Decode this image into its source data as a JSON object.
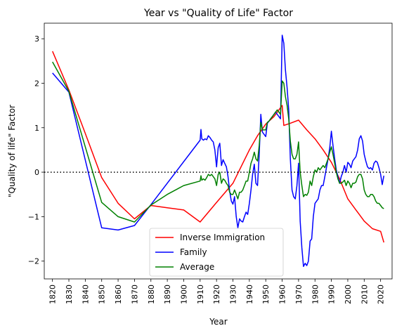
{
  "chart_data": {
    "type": "line",
    "title": "Year vs \"Quality of Life\" Factor",
    "xlabel": "Year",
    "ylabel": "\"Quality of life\" Factor",
    "xlim": [
      1815,
      2027
    ],
    "ylim": [
      -2.4,
      3.35
    ],
    "x_ticks": [
      1820,
      1830,
      1840,
      1850,
      1860,
      1870,
      1880,
      1890,
      1900,
      1910,
      1920,
      1930,
      1940,
      1950,
      1960,
      1970,
      1980,
      1990,
      2000,
      2010,
      2020
    ],
    "y_ticks": [
      -2,
      -1,
      0,
      1,
      2,
      3
    ],
    "x_tick_labels": [
      "1820",
      "1830",
      "1840",
      "1850",
      "1860",
      "1870",
      "1880",
      "1890",
      "1900",
      "1910",
      "1920",
      "1930",
      "1940",
      "1950",
      "1960",
      "1970",
      "1980",
      "1990",
      "2000",
      "2010",
      "2020"
    ],
    "y_tick_labels": [
      "−2",
      "−1",
      "0",
      "1",
      "2",
      "3"
    ],
    "reference_line": {
      "y": 0,
      "style": "dotted",
      "color": "#000000"
    },
    "legend_position": "bottom-center",
    "series": [
      {
        "name": "Inverse Immigration",
        "color": "#ff0000",
        "points": [
          [
            1820,
            2.72
          ],
          [
            1830,
            1.85
          ],
          [
            1840,
            0.87
          ],
          [
            1850,
            -0.12
          ],
          [
            1860,
            -0.7
          ],
          [
            1870,
            -1.05
          ],
          [
            1880,
            -0.75
          ],
          [
            1890,
            -0.8
          ],
          [
            1900,
            -0.85
          ],
          [
            1910,
            -1.12
          ],
          [
            1920,
            -0.68
          ],
          [
            1930,
            -0.25
          ],
          [
            1940,
            0.5
          ],
          [
            1945,
            0.82
          ],
          [
            1950,
            1.08
          ],
          [
            1955,
            1.25
          ],
          [
            1960,
            1.5
          ],
          [
            1961,
            1.05
          ],
          [
            1965,
            1.1
          ],
          [
            1970,
            1.17
          ],
          [
            1975,
            0.95
          ],
          [
            1980,
            0.75
          ],
          [
            1985,
            0.5
          ],
          [
            1990,
            0.22
          ],
          [
            1995,
            -0.15
          ],
          [
            2000,
            -0.6
          ],
          [
            2005,
            -0.85
          ],
          [
            2010,
            -1.1
          ],
          [
            2015,
            -1.27
          ],
          [
            2020,
            -1.33
          ],
          [
            2022,
            -1.58
          ]
        ]
      },
      {
        "name": "Family",
        "color": "#0000ff",
        "points": [
          [
            1820,
            2.23
          ],
          [
            1830,
            1.8
          ],
          [
            1850,
            -1.25
          ],
          [
            1860,
            -1.3
          ],
          [
            1870,
            -1.2
          ],
          [
            1880,
            -0.73
          ],
          [
            1910,
            0.72
          ],
          [
            1910.5,
            0.96
          ],
          [
            1911,
            0.75
          ],
          [
            1912,
            0.72
          ],
          [
            1913,
            0.75
          ],
          [
            1914,
            0.73
          ],
          [
            1915,
            0.82
          ],
          [
            1916,
            0.78
          ],
          [
            1917,
            0.72
          ],
          [
            1918,
            0.68
          ],
          [
            1919,
            0.5
          ],
          [
            1920,
            0.12
          ],
          [
            1921,
            0.55
          ],
          [
            1922,
            0.65
          ],
          [
            1923,
            0.15
          ],
          [
            1924,
            0.28
          ],
          [
            1925,
            0.2
          ],
          [
            1926,
            0.12
          ],
          [
            1927,
            -0.1
          ],
          [
            1928,
            -0.42
          ],
          [
            1929,
            -0.65
          ],
          [
            1930,
            -0.72
          ],
          [
            1931,
            -0.55
          ],
          [
            1932,
            -1.0
          ],
          [
            1933,
            -1.25
          ],
          [
            1934,
            -1.05
          ],
          [
            1935,
            -1.1
          ],
          [
            1936,
            -1.12
          ],
          [
            1937,
            -1.0
          ],
          [
            1938,
            -0.9
          ],
          [
            1939,
            -0.95
          ],
          [
            1940,
            -0.7
          ],
          [
            1941,
            -0.4
          ],
          [
            1942,
            -0.05
          ],
          [
            1943,
            0.18
          ],
          [
            1944,
            -0.25
          ],
          [
            1945,
            -0.3
          ],
          [
            1946,
            0.4
          ],
          [
            1947,
            1.3
          ],
          [
            1948,
            0.9
          ],
          [
            1949,
            0.85
          ],
          [
            1950,
            0.8
          ],
          [
            1951,
            1.1
          ],
          [
            1952,
            1.15
          ],
          [
            1953,
            1.2
          ],
          [
            1954,
            1.25
          ],
          [
            1955,
            1.3
          ],
          [
            1956,
            1.35
          ],
          [
            1957,
            1.3
          ],
          [
            1958,
            1.25
          ],
          [
            1959,
            1.2
          ],
          [
            1960,
            3.08
          ],
          [
            1961,
            2.9
          ],
          [
            1962,
            2.3
          ],
          [
            1963,
            1.9
          ],
          [
            1964,
            1.4
          ],
          [
            1965,
            0.3
          ],
          [
            1966,
            -0.4
          ],
          [
            1967,
            -0.55
          ],
          [
            1968,
            -0.6
          ],
          [
            1969,
            -0.3
          ],
          [
            1970,
            0.2
          ],
          [
            1971,
            -1.1
          ],
          [
            1972,
            -1.7
          ],
          [
            1973,
            -2.12
          ],
          [
            1974,
            -2.05
          ],
          [
            1975,
            -2.1
          ],
          [
            1976,
            -2.0
          ],
          [
            1977,
            -1.55
          ],
          [
            1978,
            -1.5
          ],
          [
            1979,
            -1.0
          ],
          [
            1980,
            -0.7
          ],
          [
            1981,
            -0.65
          ],
          [
            1982,
            -0.6
          ],
          [
            1983,
            -0.4
          ],
          [
            1984,
            -0.3
          ],
          [
            1985,
            -0.3
          ],
          [
            1986,
            -0.1
          ],
          [
            1987,
            0.1
          ],
          [
            1988,
            0.3
          ],
          [
            1989,
            0.55
          ],
          [
            1990,
            0.92
          ],
          [
            1991,
            0.6
          ],
          [
            1992,
            0.3
          ],
          [
            1993,
            0.05
          ],
          [
            1994,
            -0.1
          ],
          [
            1995,
            -0.25
          ],
          [
            1996,
            -0.1
          ],
          [
            1997,
            0.0
          ],
          [
            1998,
            0.15
          ],
          [
            1999,
            0.0
          ],
          [
            2000,
            0.22
          ],
          [
            2001,
            0.18
          ],
          [
            2002,
            0.1
          ],
          [
            2003,
            0.25
          ],
          [
            2004,
            0.3
          ],
          [
            2005,
            0.35
          ],
          [
            2006,
            0.5
          ],
          [
            2007,
            0.75
          ],
          [
            2008,
            0.82
          ],
          [
            2009,
            0.7
          ],
          [
            2010,
            0.4
          ],
          [
            2011,
            0.25
          ],
          [
            2012,
            0.12
          ],
          [
            2013,
            0.08
          ],
          [
            2014,
            0.1
          ],
          [
            2015,
            0.05
          ],
          [
            2016,
            0.2
          ],
          [
            2017,
            0.25
          ],
          [
            2018,
            0.22
          ],
          [
            2019,
            0.1
          ],
          [
            2020,
            -0.05
          ],
          [
            2021,
            -0.28
          ],
          [
            2022,
            -0.08
          ]
        ]
      },
      {
        "name": "Average",
        "color": "#008000",
        "points": [
          [
            1820,
            2.48
          ],
          [
            1830,
            1.82
          ],
          [
            1850,
            -0.68
          ],
          [
            1860,
            -1.0
          ],
          [
            1870,
            -1.12
          ],
          [
            1880,
            -0.74
          ],
          [
            1890,
            -0.5
          ],
          [
            1900,
            -0.3
          ],
          [
            1910,
            -0.2
          ],
          [
            1910.5,
            -0.08
          ],
          [
            1911,
            -0.18
          ],
          [
            1912,
            -0.15
          ],
          [
            1913,
            -0.18
          ],
          [
            1914,
            -0.12
          ],
          [
            1915,
            -0.05
          ],
          [
            1916,
            -0.08
          ],
          [
            1917,
            -0.05
          ],
          [
            1918,
            -0.1
          ],
          [
            1919,
            -0.15
          ],
          [
            1920,
            -0.3
          ],
          [
            1921,
            -0.05
          ],
          [
            1922,
            0.0
          ],
          [
            1923,
            -0.25
          ],
          [
            1924,
            -0.15
          ],
          [
            1925,
            -0.18
          ],
          [
            1926,
            -0.25
          ],
          [
            1927,
            -0.3
          ],
          [
            1928,
            -0.45
          ],
          [
            1929,
            -0.5
          ],
          [
            1930,
            -0.5
          ],
          [
            1931,
            -0.4
          ],
          [
            1932,
            -0.5
          ],
          [
            1933,
            -0.6
          ],
          [
            1934,
            -0.45
          ],
          [
            1935,
            -0.45
          ],
          [
            1936,
            -0.4
          ],
          [
            1937,
            -0.3
          ],
          [
            1938,
            -0.2
          ],
          [
            1939,
            -0.2
          ],
          [
            1940,
            0.0
          ],
          [
            1941,
            0.2
          ],
          [
            1942,
            0.3
          ],
          [
            1943,
            0.45
          ],
          [
            1944,
            0.3
          ],
          [
            1945,
            0.25
          ],
          [
            1946,
            0.6
          ],
          [
            1947,
            1.12
          ],
          [
            1948,
            0.95
          ],
          [
            1949,
            0.95
          ],
          [
            1950,
            0.95
          ],
          [
            1951,
            1.12
          ],
          [
            1952,
            1.15
          ],
          [
            1953,
            1.2
          ],
          [
            1954,
            1.25
          ],
          [
            1955,
            1.3
          ],
          [
            1956,
            1.35
          ],
          [
            1957,
            1.4
          ],
          [
            1958,
            1.35
          ],
          [
            1959,
            1.3
          ],
          [
            1960,
            2.05
          ],
          [
            1961,
            2.0
          ],
          [
            1962,
            1.7
          ],
          [
            1963,
            1.5
          ],
          [
            1964,
            1.2
          ],
          [
            1965,
            0.7
          ],
          [
            1966,
            0.4
          ],
          [
            1967,
            0.3
          ],
          [
            1968,
            0.3
          ],
          [
            1969,
            0.4
          ],
          [
            1970,
            0.68
          ],
          [
            1971,
            0.0
          ],
          [
            1972,
            -0.3
          ],
          [
            1973,
            -0.55
          ],
          [
            1974,
            -0.5
          ],
          [
            1975,
            -0.52
          ],
          [
            1976,
            -0.45
          ],
          [
            1977,
            -0.2
          ],
          [
            1978,
            -0.3
          ],
          [
            1979,
            -0.1
          ],
          [
            1980,
            0.05
          ],
          [
            1981,
            0.0
          ],
          [
            1982,
            0.1
          ],
          [
            1983,
            0.05
          ],
          [
            1984,
            0.1
          ],
          [
            1985,
            0.15
          ],
          [
            1986,
            0.1
          ],
          [
            1987,
            0.2
          ],
          [
            1988,
            0.3
          ],
          [
            1989,
            0.45
          ],
          [
            1990,
            0.57
          ],
          [
            1991,
            0.4
          ],
          [
            1992,
            0.2
          ],
          [
            1993,
            0.0
          ],
          [
            1994,
            -0.15
          ],
          [
            1995,
            -0.25
          ],
          [
            1996,
            -0.25
          ],
          [
            1997,
            -0.22
          ],
          [
            1998,
            -0.18
          ],
          [
            1999,
            -0.3
          ],
          [
            2000,
            -0.2
          ],
          [
            2001,
            -0.25
          ],
          [
            2002,
            -0.35
          ],
          [
            2003,
            -0.25
          ],
          [
            2004,
            -0.25
          ],
          [
            2005,
            -0.22
          ],
          [
            2006,
            -0.1
          ],
          [
            2007,
            -0.05
          ],
          [
            2008,
            -0.05
          ],
          [
            2009,
            -0.15
          ],
          [
            2010,
            -0.4
          ],
          [
            2011,
            -0.5
          ],
          [
            2012,
            -0.55
          ],
          [
            2013,
            -0.55
          ],
          [
            2014,
            -0.5
          ],
          [
            2015,
            -0.5
          ],
          [
            2016,
            -0.55
          ],
          [
            2017,
            -0.65
          ],
          [
            2018,
            -0.7
          ],
          [
            2019,
            -0.7
          ],
          [
            2020,
            -0.75
          ],
          [
            2021,
            -0.8
          ],
          [
            2022,
            -0.82
          ]
        ]
      }
    ]
  }
}
